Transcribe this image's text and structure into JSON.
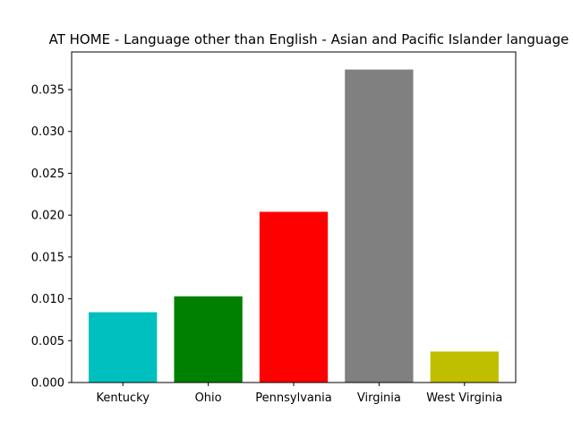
{
  "chart_data": {
    "type": "bar",
    "title": "AT HOME - Language other than English - Asian and Pacific Islander language",
    "xlabel": "",
    "ylabel": "",
    "categories": [
      "Kentucky",
      "Ohio",
      "Pennsylvania",
      "Virginia",
      "West Virginia"
    ],
    "values": [
      0.0084,
      0.0103,
      0.0204,
      0.0374,
      0.0037
    ],
    "colors": [
      "#00bfbf",
      "#008000",
      "#ff0000",
      "#808080",
      "#bfbf00"
    ],
    "ylim": [
      0,
      0.0395
    ],
    "yticks": [
      0.0,
      0.005,
      0.01,
      0.015,
      0.02,
      0.025,
      0.03,
      0.035
    ],
    "ytick_labels": [
      "0.000",
      "0.005",
      "0.010",
      "0.015",
      "0.020",
      "0.025",
      "0.030",
      "0.035"
    ],
    "grid": false,
    "legend": "none"
  }
}
